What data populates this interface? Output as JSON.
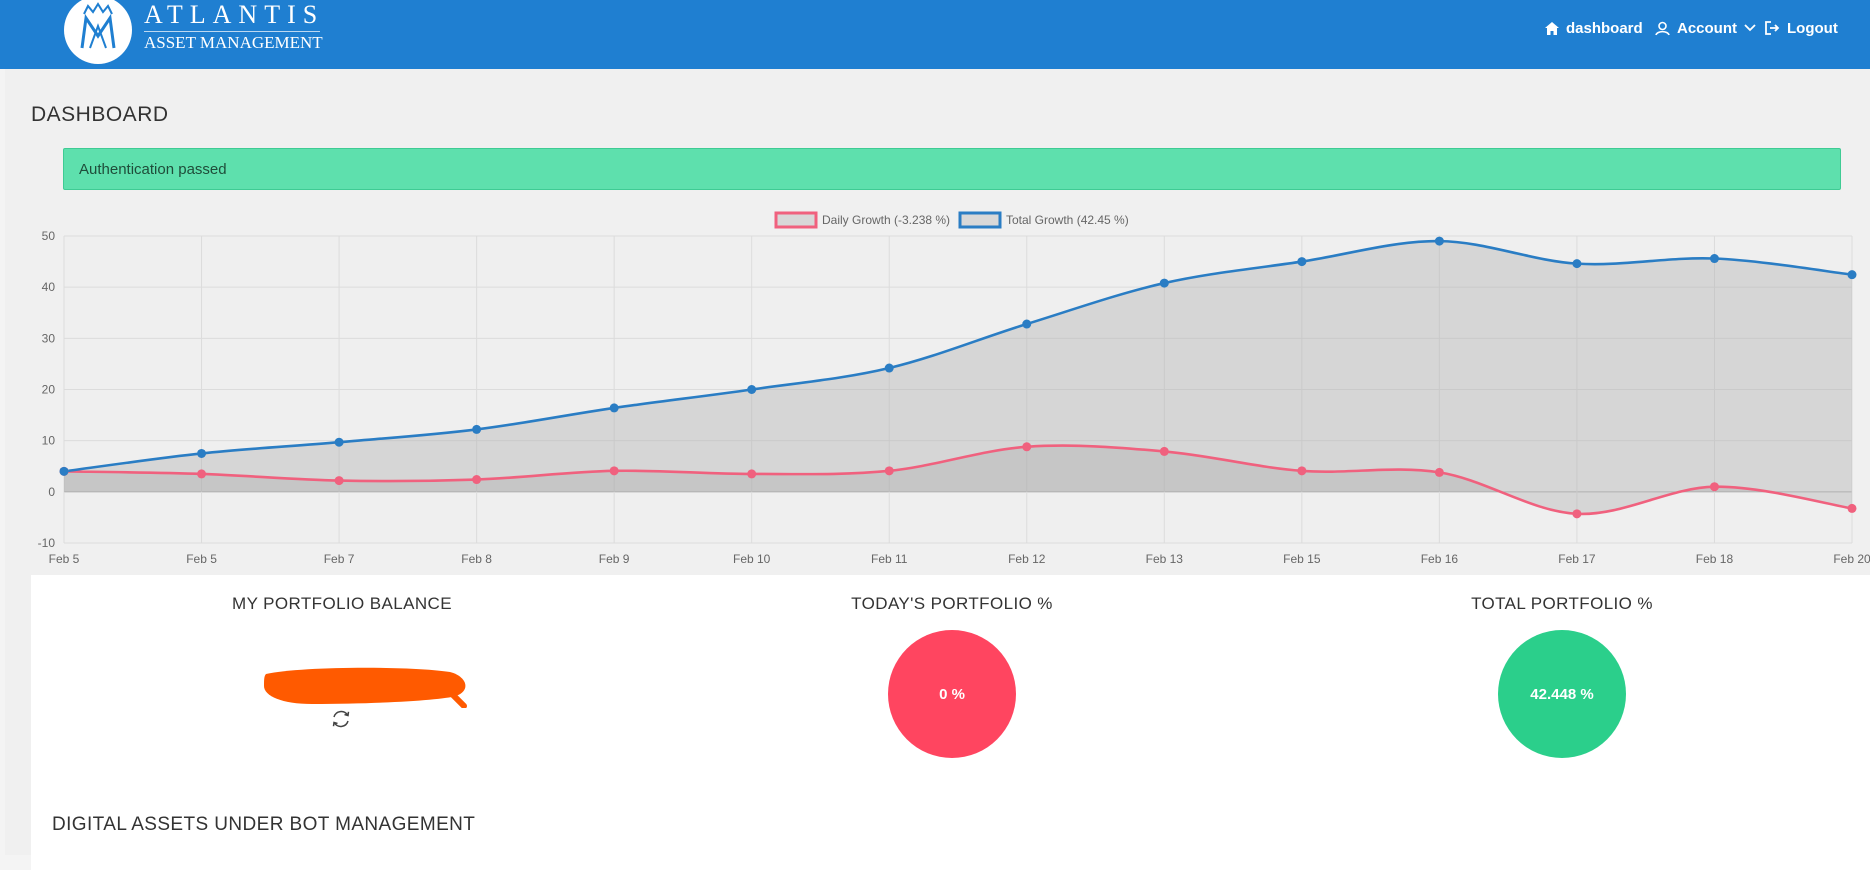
{
  "header": {
    "brand_name": "ATLANTIS",
    "brand_sub": "ASSET MANAGEMENT",
    "nav": [
      {
        "label": "dashboard",
        "icon": "home-icon"
      },
      {
        "label": "Account",
        "icon": "user-icon"
      },
      {
        "label": "Logout",
        "icon": "logout-icon"
      }
    ]
  },
  "page": {
    "title": "DASHBOARD"
  },
  "alert": {
    "text": "Authentication passed",
    "color": "#5ee0ad"
  },
  "chart_data": {
    "type": "area",
    "categories": [
      "Feb 5",
      "Feb 5",
      "Feb 7",
      "Feb 8",
      "Feb 9",
      "Feb 10",
      "Feb 11",
      "Feb 12",
      "Feb 13",
      "Feb 15",
      "Feb 16",
      "Feb 17",
      "Feb 18",
      "Feb 20"
    ],
    "series": [
      {
        "name": "Daily Growth (-3.238 %)",
        "color": "#f0617e",
        "values": [
          4,
          3.5,
          2.2,
          2.4,
          4.1,
          3.5,
          4.1,
          8.8,
          7.9,
          4.1,
          3.8,
          -4.3,
          1,
          -3.238
        ]
      },
      {
        "name": "Total Growth (42.45 %)",
        "color": "#2a7dc4",
        "values": [
          4,
          7.5,
          9.7,
          12.2,
          16.4,
          20,
          24.2,
          32.8,
          40.8,
          45,
          49,
          44.6,
          45.6,
          42.45
        ]
      }
    ],
    "ylim": [
      -10,
      50
    ],
    "yticks": [
      50,
      40,
      30,
      20,
      10,
      0,
      -10
    ],
    "grid": true,
    "legend": "top-center"
  },
  "stats": {
    "balance": {
      "title": "MY PORTFOLIO BALANCE"
    },
    "today": {
      "title": "TODAY'S PORTFOLIO %",
      "value": "0 %",
      "color": "#ff4560"
    },
    "total": {
      "title": "TOTAL PORTFOLIO %",
      "value": "42.448 %",
      "color": "#2bcf8b"
    }
  },
  "section": {
    "title": "DIGITAL ASSETS UNDER BOT MANAGEMENT"
  }
}
